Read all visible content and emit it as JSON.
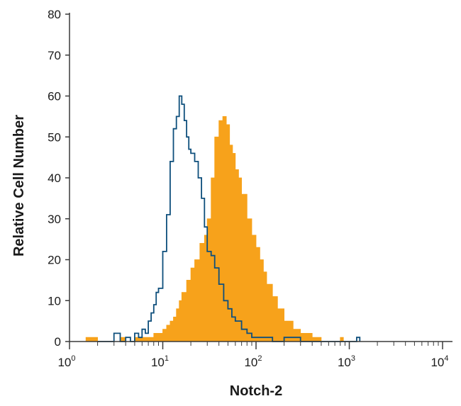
{
  "chart_data": {
    "type": "area",
    "xlabel": "Notch-2",
    "ylabel": "Relative Cell Number",
    "x_scale": "log",
    "xlim": [
      1,
      10000
    ],
    "ylim": [
      0,
      80
    ],
    "grid": false,
    "legend": "none",
    "y_ticks": [
      "0",
      "10",
      "20",
      "30",
      "40",
      "50",
      "60",
      "70",
      "80"
    ],
    "x_ticks": [
      {
        "base": "10",
        "exp": "0"
      },
      {
        "base": "10",
        "exp": "1"
      },
      {
        "base": "10",
        "exp": "2"
      },
      {
        "base": "10",
        "exp": "3"
      },
      {
        "base": "10",
        "exp": "4"
      }
    ],
    "series": [
      {
        "style": "outline",
        "color": "#0e4f7c",
        "x": [
          2.0,
          2.5,
          3.0,
          3.5,
          4.0,
          4.5,
          5.0,
          5.5,
          6.0,
          6.5,
          7.0,
          7.5,
          8.0,
          8.5,
          9.0,
          10.0,
          11.0,
          12.0,
          13.0,
          14.0,
          15.0,
          16.0,
          17.0,
          18.0,
          19.0,
          20.0,
          22.0,
          24.0,
          26.0,
          28.0,
          30.0,
          33.0,
          36.0,
          40.0,
          45.0,
          50.0,
          55.0,
          60.0,
          70.0,
          80.0,
          90.0,
          100.0,
          120.0,
          150.0,
          200.0,
          300.0,
          500.0,
          800.0,
          1200.0
        ],
        "y": [
          0,
          0,
          2,
          0,
          1,
          0,
          2,
          1,
          3,
          2,
          5,
          7,
          9,
          12,
          13,
          22,
          31,
          44,
          52,
          55,
          60,
          58,
          54,
          50,
          47,
          46,
          44,
          40,
          35,
          28,
          22,
          21,
          18,
          14,
          10,
          8,
          6,
          5,
          3,
          2,
          1,
          1,
          1,
          0,
          1,
          0,
          0,
          0,
          1
        ]
      },
      {
        "style": "filled",
        "color": "#f7a21b",
        "x": [
          1.5,
          2.0,
          2.5,
          3.0,
          3.5,
          4.0,
          4.5,
          5.0,
          6.0,
          7.0,
          8.0,
          9.0,
          10.0,
          11.0,
          12.0,
          13.0,
          14.0,
          15.0,
          16.0,
          18.0,
          20.0,
          22.0,
          25.0,
          28.0,
          30.0,
          33.0,
          36.0,
          40.0,
          44.0,
          48.0,
          52.0,
          56.0,
          60.0,
          65.0,
          70.0,
          80.0,
          90.0,
          100.0,
          110.0,
          120.0,
          130.0,
          150.0,
          170.0,
          200.0,
          250.0,
          300.0,
          400.0,
          500.0,
          800.0
        ],
        "y": [
          1,
          0,
          0,
          0,
          1,
          0,
          0,
          1,
          1,
          1,
          2,
          2,
          3,
          4,
          5,
          6,
          8,
          10,
          12,
          15,
          18,
          20,
          24,
          26,
          30,
          40,
          50,
          54,
          55,
          53,
          48,
          46,
          42,
          40,
          36,
          30,
          26,
          23,
          20,
          17,
          14,
          11,
          8,
          5,
          3,
          2,
          1,
          0,
          1
        ]
      }
    ]
  }
}
